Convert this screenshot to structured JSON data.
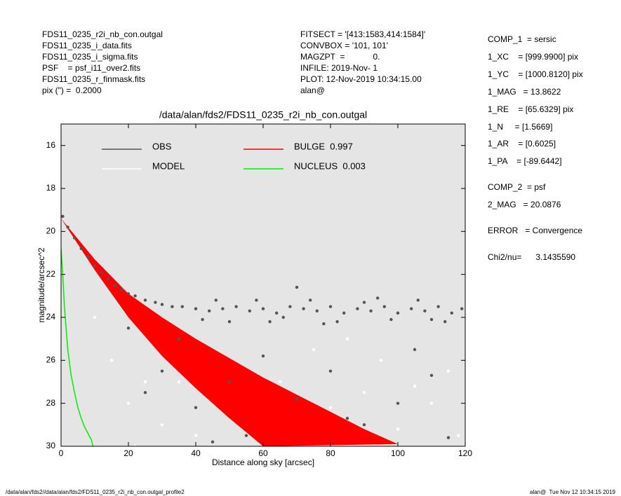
{
  "header": {
    "left": [
      "FDS11_0235_r2i_nb_con.outgal",
      "FDS11_0235_i_data.fits",
      "FDS11_0235_i_sigma.fits",
      "PSF    = psf_i11_over2.fits",
      "FDS11_0235_r_finmask.fits",
      "pix (\") =  0.2000"
    ],
    "middle": [
      "FITSECT = '[413:1583,414:1584]'",
      "CONVBOX = '101, 101'",
      "MAGZPT  =            0.",
      "INFILE: 2019-Nov- 1",
      "PLOT: 12-Nov-2019 10:34:15.00",
      "alan@"
    ],
    "right": [
      "COMP_1  = sersic",
      "1_XC    = [999.9900] pix",
      "1_YC    = [1000.8120] pix",
      "1_MAG   = 13.8622",
      "1_RE    = [65.6329] pix",
      "1_N     = [1.5669]",
      "1_AR    = [0.6025]",
      "1_PA    = [-89.6442]",
      "COMP_2  = psf",
      "2_MAG   = 20.0876",
      "ERROR   = Convergence",
      "Chi2/nu=      3.1435590"
    ]
  },
  "footer": {
    "left": "/data/alan/fds2//data/alan/fds2/FDS11_0235_r2i_nb_con.outgal_profile2",
    "right": "alan@  Tue Nov 12 10:34:15 2019"
  },
  "chart_data": {
    "type": "scatter",
    "title": "/data/alan/fds2/FDS11_0235_r2i_nb_con.outgal",
    "xlabel": "Distance along sky [arcsec]",
    "ylabel": "magnitude/arcsec^2",
    "xlim": [
      0,
      120
    ],
    "ylim": [
      30,
      15
    ],
    "xticks": [
      0,
      20,
      40,
      60,
      80,
      100,
      120
    ],
    "yticks": [
      16,
      18,
      20,
      22,
      24,
      26,
      28,
      30
    ],
    "background": "#e5e5e5",
    "series": [
      {
        "name": "OBS",
        "kind": "scatter",
        "color": "#555555",
        "x": [
          0.5,
          2,
          4,
          6,
          8,
          10,
          12,
          14,
          16,
          18,
          20,
          22,
          25,
          28,
          30,
          33,
          36,
          40,
          44,
          48,
          52,
          56,
          60,
          64,
          68,
          70,
          72,
          76,
          80,
          84,
          88,
          92,
          96,
          100,
          104,
          108,
          112,
          116,
          119,
          42,
          50,
          58,
          66,
          74,
          82,
          90,
          98,
          106,
          114,
          46,
          62,
          78,
          94,
          110,
          30,
          40,
          50,
          55,
          60,
          70,
          80,
          90,
          100,
          110,
          115,
          45,
          85,
          105,
          35,
          20,
          25
        ],
        "y": [
          19.3,
          19.8,
          20.3,
          20.8,
          21.2,
          21.6,
          21.9,
          22.2,
          22.5,
          22.7,
          22.9,
          23.0,
          23.2,
          23.3,
          23.4,
          23.5,
          23.5,
          23.6,
          23.7,
          23.6,
          23.5,
          23.7,
          23.6,
          23.8,
          23.5,
          22.6,
          23.6,
          23.7,
          23.5,
          23.8,
          23.6,
          23.7,
          23.5,
          23.8,
          23.6,
          23.7,
          23.5,
          23.8,
          23.6,
          24.1,
          24.2,
          23.2,
          24.0,
          23.2,
          24.2,
          23.3,
          24.1,
          23.2,
          24.2,
          23.2,
          24.2,
          24.3,
          23.1,
          24.1,
          26.5,
          28.2,
          27.0,
          29.5,
          25.8,
          27.8,
          26.5,
          29.0,
          28.0,
          26.7,
          29.6,
          29.8,
          28.7,
          25.5,
          25.0,
          24.5,
          27.5
        ]
      },
      {
        "name": "MODEL",
        "kind": "scatter",
        "color": "#ffffff",
        "x": [
          10,
          15,
          20,
          22,
          25,
          30,
          40,
          50,
          60,
          70,
          80,
          90,
          100,
          110,
          118,
          35,
          45,
          65,
          75,
          95,
          105,
          115,
          55,
          85
        ],
        "y": [
          24,
          26,
          28,
          30,
          27,
          29,
          29.5,
          28.5,
          29,
          29.8,
          28.2,
          27.5,
          29.2,
          28,
          29.5,
          27,
          26,
          27,
          25.5,
          26,
          27.2,
          26.5,
          26.8,
          25
        ]
      },
      {
        "name": "BULGE  0.997",
        "kind": "band",
        "color": "#ff0000",
        "x": [
          0,
          10,
          20,
          30,
          40,
          50,
          60,
          70,
          80,
          90,
          100
        ],
        "y_upper": [
          19.4,
          21.3,
          22.9,
          24.0,
          25.0,
          25.9,
          26.8,
          27.6,
          28.4,
          29.2,
          29.9
        ],
        "y_lower": [
          19.4,
          21.8,
          24.0,
          25.8,
          27.3,
          28.7,
          30.0,
          null,
          null,
          null,
          null
        ]
      },
      {
        "name": "NUCLEUS  0.003",
        "kind": "line",
        "color": "#00ee00",
        "x": [
          0,
          0.5,
          1,
          2,
          3,
          4,
          5,
          6,
          7,
          8,
          9,
          9.5
        ],
        "y": [
          20.8,
          22.0,
          23.5,
          25.5,
          26.7,
          27.5,
          28.2,
          28.7,
          29.1,
          29.4,
          29.7,
          30.0
        ]
      }
    ]
  }
}
